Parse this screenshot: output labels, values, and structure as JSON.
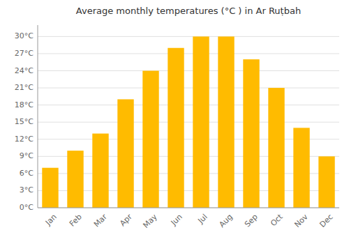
{
  "chart_data": {
    "type": "bar",
    "title": "Average monthly temperatures (°C ) in Ar Ruṭbah",
    "categories": [
      "Jan",
      "Feb",
      "Mar",
      "Apr",
      "May",
      "Jun",
      "Jul",
      "Aug",
      "Sep",
      "Oct",
      "Nov",
      "Dec"
    ],
    "values": [
      7,
      10,
      13,
      19,
      24,
      28,
      30,
      30,
      26,
      21,
      14,
      9
    ],
    "color": "#FFBB00",
    "ylim": [
      0,
      32
    ],
    "yticks": [
      {
        "value": 0,
        "label": "0°C"
      },
      {
        "value": 3,
        "label": "3°C"
      },
      {
        "value": 6,
        "label": "6°C"
      },
      {
        "value": 9,
        "label": "9°C"
      },
      {
        "value": 12,
        "label": "12°C"
      },
      {
        "value": 15,
        "label": "15°C"
      },
      {
        "value": 18,
        "label": "18°C"
      },
      {
        "value": 21,
        "label": "21°C"
      },
      {
        "value": 24,
        "label": "24°C"
      },
      {
        "value": 27,
        "label": "27°C"
      },
      {
        "value": 30,
        "label": "30°C"
      }
    ],
    "grid": true
  }
}
